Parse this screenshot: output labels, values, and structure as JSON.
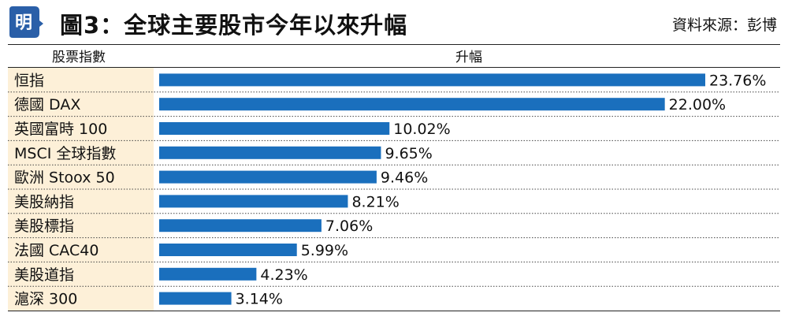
{
  "header": {
    "title": "圖3：全球主要股市今年以來升幅",
    "source": "資料來源：彭博",
    "logo_text": "明"
  },
  "columns": {
    "category": "股票指數",
    "value": "升幅"
  },
  "colors": {
    "bar": "#1a6fbd",
    "category_bg": "#fdf0d8",
    "logo_bg": "#2a5fa8"
  },
  "chart_data": {
    "type": "bar",
    "orientation": "horizontal",
    "categories": [
      "恒指",
      "德國 DAX",
      "英國富時 100",
      "MSCI 全球指數",
      "歐洲 Stoox 50",
      "美股納指",
      "美股標指",
      "法國 CAC40",
      "美股道指",
      "滬深 300"
    ],
    "values": [
      23.76,
      22.0,
      10.02,
      9.65,
      9.46,
      8.21,
      7.06,
      5.99,
      4.23,
      3.14
    ],
    "labels": [
      "23.76%",
      "22.00%",
      "10.02%",
      "9.65%",
      "9.46%",
      "8.21%",
      "7.06%",
      "5.99%",
      "4.23%",
      "3.14%"
    ],
    "unit": "%",
    "xlim": [
      0,
      23.76
    ],
    "grid": false,
    "legend": "none"
  }
}
